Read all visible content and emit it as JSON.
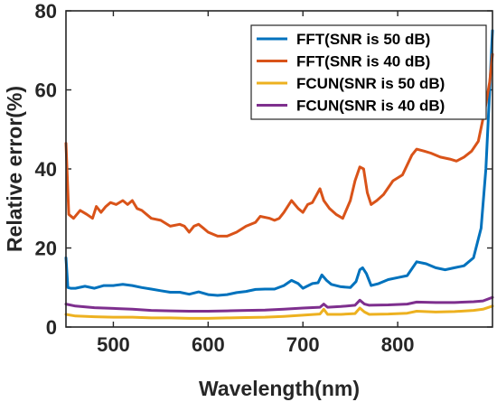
{
  "chart_data": {
    "type": "line",
    "xlabel": "Wavelength(nm)",
    "ylabel": "Relative error(%)",
    "xlim": [
      450,
      900
    ],
    "ylim": [
      0,
      80
    ],
    "xticks": [
      500,
      600,
      700,
      800
    ],
    "yticks": [
      0,
      20,
      40,
      60,
      80
    ],
    "legend_position": "top-right",
    "grid": false,
    "series": [
      {
        "name": "FFT(SNR is 50 dB)",
        "color": "#0072BD",
        "points": [
          [
            450,
            17.5
          ],
          [
            452,
            10
          ],
          [
            455,
            9.8
          ],
          [
            460,
            9.8
          ],
          [
            470,
            10.3
          ],
          [
            480,
            9.8
          ],
          [
            490,
            10.5
          ],
          [
            500,
            10.5
          ],
          [
            510,
            10.8
          ],
          [
            520,
            10.5
          ],
          [
            530,
            10
          ],
          [
            540,
            9.6
          ],
          [
            550,
            9.2
          ],
          [
            560,
            8.8
          ],
          [
            570,
            8.8
          ],
          [
            580,
            8.3
          ],
          [
            590,
            8.9
          ],
          [
            600,
            8.2
          ],
          [
            610,
            8.0
          ],
          [
            620,
            8.2
          ],
          [
            630,
            8.7
          ],
          [
            640,
            9.0
          ],
          [
            650,
            9.5
          ],
          [
            660,
            9.6
          ],
          [
            670,
            9.6
          ],
          [
            680,
            10.5
          ],
          [
            688,
            11.8
          ],
          [
            695,
            11.0
          ],
          [
            700,
            9.8
          ],
          [
            710,
            11.0
          ],
          [
            716,
            11.2
          ],
          [
            720,
            13.2
          ],
          [
            725,
            11.8
          ],
          [
            730,
            10.8
          ],
          [
            740,
            10.2
          ],
          [
            750,
            10.0
          ],
          [
            756,
            11.5
          ],
          [
            760,
            14.5
          ],
          [
            763,
            15.0
          ],
          [
            767,
            13.5
          ],
          [
            772,
            10.5
          ],
          [
            780,
            11.0
          ],
          [
            790,
            12.0
          ],
          [
            800,
            12.5
          ],
          [
            810,
            13.0
          ],
          [
            820,
            16.5
          ],
          [
            830,
            16.0
          ],
          [
            840,
            15.0
          ],
          [
            850,
            14.5
          ],
          [
            860,
            15.0
          ],
          [
            870,
            15.5
          ],
          [
            880,
            17.5
          ],
          [
            888,
            25
          ],
          [
            893,
            40
          ],
          [
            897,
            60
          ],
          [
            900,
            75
          ]
        ]
      },
      {
        "name": "FFT(SNR is 40 dB)",
        "color": "#D95319",
        "points": [
          [
            450,
            46.5
          ],
          [
            453,
            28.5
          ],
          [
            458,
            27.5
          ],
          [
            465,
            29.5
          ],
          [
            472,
            28.5
          ],
          [
            478,
            27.5
          ],
          [
            482,
            30.5
          ],
          [
            487,
            29.0
          ],
          [
            492,
            30.5
          ],
          [
            497,
            31.5
          ],
          [
            503,
            31.0
          ],
          [
            510,
            32.0
          ],
          [
            515,
            31.0
          ],
          [
            520,
            32.0
          ],
          [
            525,
            30.0
          ],
          [
            530,
            29.5
          ],
          [
            540,
            27.5
          ],
          [
            550,
            27.0
          ],
          [
            560,
            25.5
          ],
          [
            570,
            26.0
          ],
          [
            575,
            25.5
          ],
          [
            580,
            24.0
          ],
          [
            585,
            25.5
          ],
          [
            590,
            26.0
          ],
          [
            595,
            25.0
          ],
          [
            600,
            24.0
          ],
          [
            610,
            23.0
          ],
          [
            620,
            23.0
          ],
          [
            630,
            24.0
          ],
          [
            640,
            25.5
          ],
          [
            650,
            26.5
          ],
          [
            655,
            28.0
          ],
          [
            665,
            27.5
          ],
          [
            670,
            27.0
          ],
          [
            675,
            27.5
          ],
          [
            680,
            29.0
          ],
          [
            688,
            32.0
          ],
          [
            695,
            30.0
          ],
          [
            700,
            29.0
          ],
          [
            705,
            31.0
          ],
          [
            710,
            31.5
          ],
          [
            718,
            35.0
          ],
          [
            722,
            32.0
          ],
          [
            728,
            30.0
          ],
          [
            735,
            28.5
          ],
          [
            742,
            27.5
          ],
          [
            750,
            32.0
          ],
          [
            755,
            37.0
          ],
          [
            760,
            40.5
          ],
          [
            764,
            40.0
          ],
          [
            768,
            34.0
          ],
          [
            772,
            31.0
          ],
          [
            778,
            32.0
          ],
          [
            785,
            33.5
          ],
          [
            795,
            37.0
          ],
          [
            805,
            38.5
          ],
          [
            815,
            43.5
          ],
          [
            820,
            45.0
          ],
          [
            828,
            44.5
          ],
          [
            835,
            44.0
          ],
          [
            845,
            43.0
          ],
          [
            855,
            42.5
          ],
          [
            862,
            42.0
          ],
          [
            870,
            43.0
          ],
          [
            878,
            44.5
          ],
          [
            885,
            47.0
          ],
          [
            892,
            55.0
          ],
          [
            897,
            62.0
          ],
          [
            900,
            69.0
          ]
        ]
      },
      {
        "name": "FCUN(SNR is 50 dB)",
        "color": "#EDB120",
        "points": [
          [
            450,
            3.2
          ],
          [
            460,
            2.8
          ],
          [
            480,
            2.6
          ],
          [
            500,
            2.5
          ],
          [
            520,
            2.5
          ],
          [
            540,
            2.3
          ],
          [
            560,
            2.3
          ],
          [
            580,
            2.2
          ],
          [
            600,
            2.2
          ],
          [
            620,
            2.3
          ],
          [
            640,
            2.4
          ],
          [
            660,
            2.5
          ],
          [
            680,
            2.7
          ],
          [
            700,
            3.0
          ],
          [
            718,
            3.3
          ],
          [
            722,
            4.5
          ],
          [
            726,
            3.2
          ],
          [
            740,
            3.2
          ],
          [
            755,
            3.4
          ],
          [
            760,
            4.8
          ],
          [
            765,
            3.8
          ],
          [
            770,
            3.2
          ],
          [
            790,
            3.3
          ],
          [
            810,
            3.5
          ],
          [
            820,
            4.0
          ],
          [
            840,
            3.8
          ],
          [
            860,
            3.9
          ],
          [
            880,
            4.2
          ],
          [
            890,
            4.5
          ],
          [
            900,
            5.3
          ]
        ]
      },
      {
        "name": "FCUN(SNR is 40 dB)",
        "color": "#7E2F8E",
        "points": [
          [
            450,
            5.8
          ],
          [
            460,
            5.3
          ],
          [
            480,
            4.9
          ],
          [
            500,
            4.7
          ],
          [
            520,
            4.5
          ],
          [
            540,
            4.2
          ],
          [
            560,
            4.1
          ],
          [
            580,
            4.0
          ],
          [
            600,
            4.0
          ],
          [
            620,
            4.1
          ],
          [
            640,
            4.2
          ],
          [
            660,
            4.3
          ],
          [
            680,
            4.5
          ],
          [
            700,
            4.8
          ],
          [
            718,
            5.0
          ],
          [
            722,
            5.8
          ],
          [
            726,
            5.0
          ],
          [
            740,
            5.2
          ],
          [
            755,
            5.5
          ],
          [
            760,
            6.8
          ],
          [
            765,
            5.8
          ],
          [
            770,
            5.5
          ],
          [
            790,
            5.6
          ],
          [
            810,
            5.8
          ],
          [
            820,
            6.3
          ],
          [
            840,
            6.2
          ],
          [
            860,
            6.2
          ],
          [
            880,
            6.4
          ],
          [
            890,
            6.6
          ],
          [
            900,
            7.5
          ]
        ]
      }
    ]
  }
}
